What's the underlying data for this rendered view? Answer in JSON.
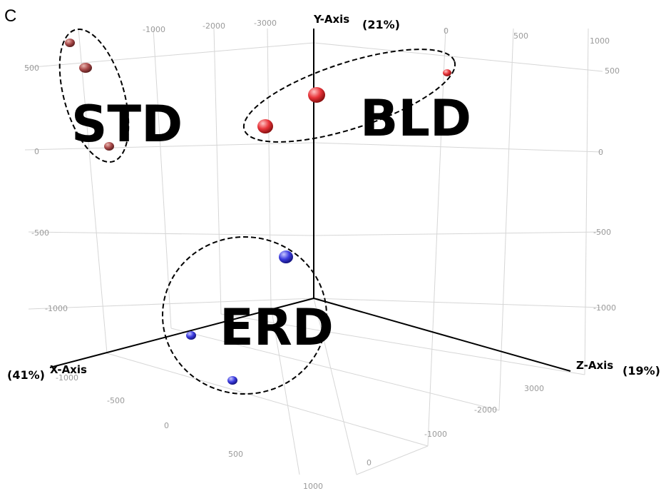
{
  "panel_label": "C",
  "chart_data": {
    "type": "scatter",
    "dimensions": 3,
    "axes": {
      "x": {
        "name": "X-Axis",
        "variance": "(41%)",
        "ticks": [
          "-1000",
          "-500",
          "0",
          "500",
          "1000"
        ]
      },
      "y": {
        "name": "Y-Axis",
        "variance": "(21%)",
        "ticks": [
          "1000",
          "500",
          "0",
          "-500",
          "-1000"
        ]
      },
      "z": {
        "name": "Z-Axis",
        "variance": "(19%)",
        "ticks": [
          "3000",
          "-2000",
          "-1000",
          "0"
        ]
      },
      "back_wall_ticks": [
        "-1000",
        "-2000",
        "-3000",
        "0",
        "500",
        "1000"
      ],
      "left_wall_ticks": [
        "500",
        "0",
        "-500",
        "-1000"
      ]
    },
    "series": [
      {
        "name": "STD",
        "color": "#a94a4a",
        "count": 3
      },
      {
        "name": "BLD",
        "color": "#e8343a",
        "count": 3
      },
      {
        "name": "ERD",
        "color": "#3c3ce0",
        "count": 3
      }
    ],
    "grid": true,
    "legend": "none"
  }
}
